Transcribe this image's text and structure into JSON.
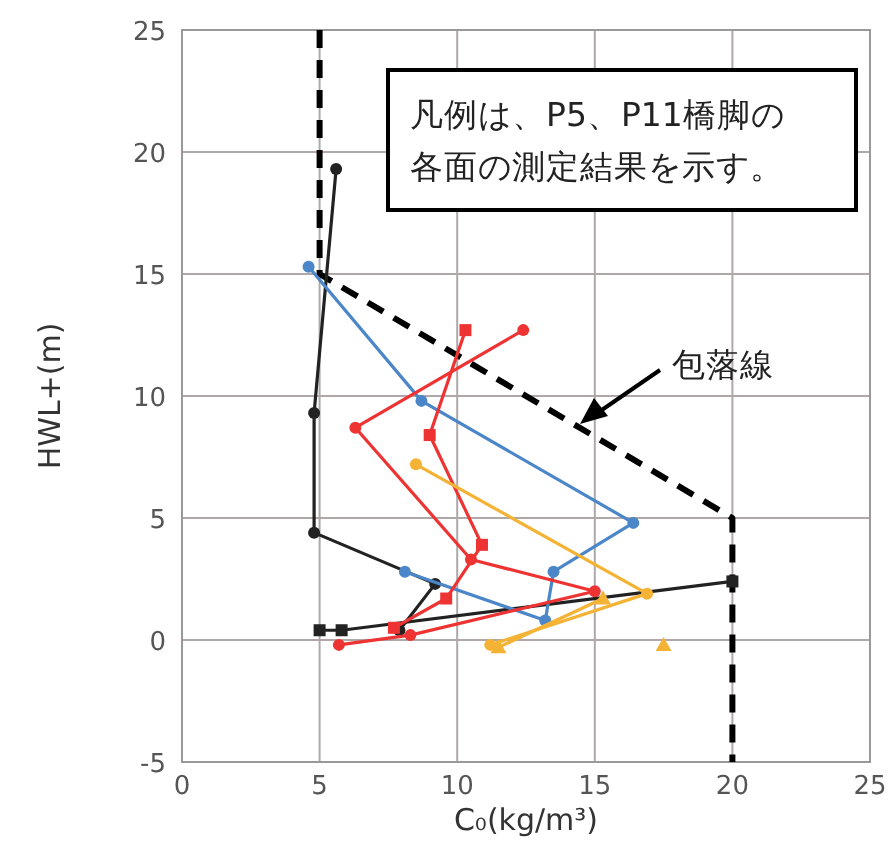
{
  "chart_data": {
    "type": "line",
    "xlabel": "C₀(kg/m³)",
    "ylabel": "HWL+(m)",
    "xlim": [
      0,
      25
    ],
    "ylim": [
      -5,
      25
    ],
    "xticks": [
      0,
      5,
      10,
      15,
      20,
      25
    ],
    "yticks": [
      -5,
      0,
      5,
      10,
      15,
      20,
      25
    ],
    "grid": true,
    "series": [
      {
        "color": "#000000",
        "line_style": "dashed",
        "marker": "none",
        "x": [
          5,
          5,
          20,
          20
        ],
        "values": [
          25,
          15,
          5,
          -5
        ]
      },
      {
        "color": "#222222",
        "marker": "circle",
        "x": [
          5.6,
          4.8,
          4.8,
          9.2,
          7.9
        ],
        "values": [
          19.3,
          9.3,
          4.4,
          2.3,
          0.4
        ]
      },
      {
        "color": "#222222",
        "marker": "square",
        "x": [
          5,
          5.8,
          20
        ],
        "values": [
          0.4,
          0.4,
          2.4
        ]
      },
      {
        "color": "#4a86c8",
        "marker": "circle",
        "x": [
          4.6,
          8.7,
          16.4,
          13.5,
          13.2,
          8.1
        ],
        "values": [
          15.3,
          9.8,
          4.8,
          2.8,
          0.8,
          2.8
        ]
      },
      {
        "color": "#ee3333",
        "marker": "circle",
        "x": [
          12.4,
          6.3,
          10.5,
          15,
          8.3,
          5.7
        ],
        "values": [
          12.7,
          8.7,
          3.3,
          2,
          0.2,
          -0.2
        ]
      },
      {
        "color": "#ee3333",
        "marker": "square",
        "x": [
          10.3,
          9,
          10.9,
          9.6,
          7.7
        ],
        "values": [
          12.7,
          8.4,
          3.9,
          1.7,
          0.5
        ]
      },
      {
        "color": "#f5b335",
        "marker": "circle",
        "x": [
          8.5,
          16.9,
          11.2
        ],
        "values": [
          7.2,
          1.9,
          -0.2
        ]
      },
      {
        "color": "#f5b335",
        "marker": "triangle",
        "x": [
          15.3,
          11.5
        ],
        "values": [
          1.7,
          -0.3
        ]
      },
      {
        "color": "#f5b335",
        "marker": "triangle",
        "x": [
          17.5
        ],
        "values": [
          -0.2
        ]
      }
    ],
    "annotations": [
      "凡例は、P5、P11橋脚の",
      "各面の測定結果を示す。",
      "包落線"
    ]
  }
}
